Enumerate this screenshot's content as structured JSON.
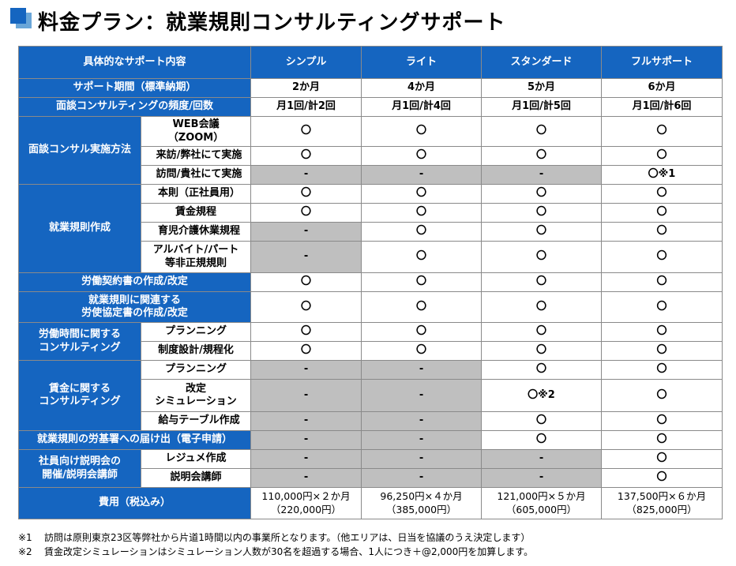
{
  "title": "料金プラン：就業規則コンサルティングサポート",
  "header": {
    "corner": "具体的なサポート内容",
    "plans": [
      "シンプル",
      "ライト",
      "スタンダード",
      "フルサポート"
    ]
  },
  "rows": {
    "period": {
      "label": "サポート期間（標準納期）",
      "values": [
        "2か月",
        "4か月",
        "5か月",
        "6か月"
      ]
    },
    "frequency": {
      "label": "面談コンサルティングの頻度/回数",
      "values": [
        "月1回/計2回",
        "月1回/計4回",
        "月1回/計5回",
        "月1回/計6回"
      ]
    },
    "method": {
      "label": "面談コンサル実施方法",
      "web": {
        "label_l1": "WEB会議",
        "label_l2": "（ZOOM）",
        "values": [
          "〇",
          "〇",
          "〇",
          "〇"
        ]
      },
      "visit_us": {
        "label": "来訪/弊社にて実施",
        "values": [
          "〇",
          "〇",
          "〇",
          "〇"
        ]
      },
      "visit_you": {
        "label": "訪問/貴社にて実施",
        "values": [
          "-",
          "-",
          "-",
          "〇※1"
        ]
      }
    },
    "rules": {
      "label": "就業規則作成",
      "main": {
        "label": "本則（正社員用）",
        "values": [
          "〇",
          "〇",
          "〇",
          "〇"
        ]
      },
      "wage": {
        "label": "賃金規程",
        "values": [
          "〇",
          "〇",
          "〇",
          "〇"
        ]
      },
      "childcare": {
        "label": "育児介護休業規程",
        "values": [
          "-",
          "〇",
          "〇",
          "〇"
        ]
      },
      "parttime": {
        "label_l1": "アルバイト/パート",
        "label_l2": "等非正規規則",
        "values": [
          "-",
          "〇",
          "〇",
          "〇"
        ]
      }
    },
    "contract": {
      "label": "労働契約書の作成/改定",
      "values": [
        "〇",
        "〇",
        "〇",
        "〇"
      ]
    },
    "agreement": {
      "label_l1": "就業規則に関連する",
      "label_l2": "労使協定書の作成/改定",
      "values": [
        "〇",
        "〇",
        "〇",
        "〇"
      ]
    },
    "hours": {
      "label_l1": "労働時間に関する",
      "label_l2": "コンサルティング",
      "planning": {
        "label": "プランニング",
        "values": [
          "〇",
          "〇",
          "〇",
          "〇"
        ]
      },
      "design": {
        "label": "制度設計/規程化",
        "values": [
          "〇",
          "〇",
          "〇",
          "〇"
        ]
      }
    },
    "wages": {
      "label_l1": "賃金に関する",
      "label_l2": "コンサルティング",
      "planning": {
        "label": "プランニング",
        "values": [
          "-",
          "-",
          "〇",
          "〇"
        ]
      },
      "simulation": {
        "label_l1": "改定",
        "label_l2": "シミュレーション",
        "values": [
          "-",
          "-",
          "〇※2",
          "〇"
        ]
      },
      "table": {
        "label": "給与テーブル作成",
        "values": [
          "-",
          "-",
          "〇",
          "〇"
        ]
      }
    },
    "filing": {
      "label": "就業規則の労基署への届け出（電子申請）",
      "values": [
        "-",
        "-",
        "〇",
        "〇"
      ]
    },
    "briefing": {
      "label_l1": "社員向け説明会の",
      "label_l2": "開催/説明会講師",
      "resume": {
        "label": "レジュメ作成",
        "values": [
          "-",
          "-",
          "-",
          "〇"
        ]
      },
      "lecturer": {
        "label": "説明会講師",
        "values": [
          "-",
          "-",
          "-",
          "〇"
        ]
      }
    },
    "cost": {
      "label": "費用（税込み）",
      "line1": [
        "110,000円×２か月",
        "96,250円×４か月",
        "121,000円×５か月",
        "137,500円×６か月"
      ],
      "line2": [
        "（220,000円）",
        "（385,000円）",
        "（605,000円）",
        "（825,000円）"
      ]
    }
  },
  "notes": [
    {
      "num": "※1",
      "text": "訪問は原則東京23区等弊社から片道1時間以内の事業所となります。（他エリアは、日当を協議のうえ決定します）"
    },
    {
      "num": "※2",
      "text": "賃金改定シミュレーションはシミュレーション人数が30名を超過する場合、1人につき＋@2,000円を加算します。"
    }
  ],
  "colors": {
    "accent": "#1565c0",
    "disabled": "#bfbfbf"
  }
}
